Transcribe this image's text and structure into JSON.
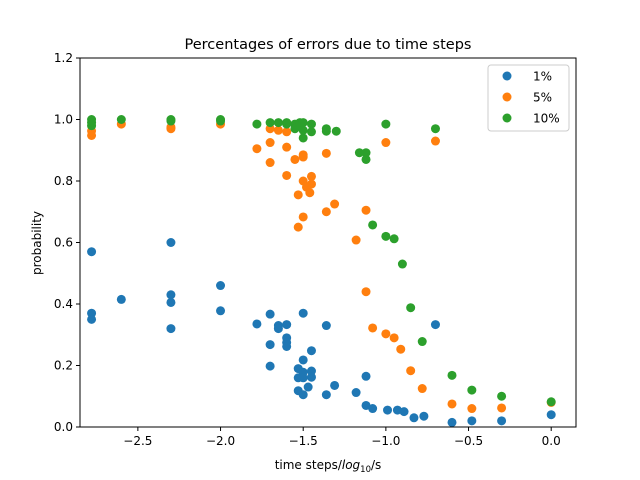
{
  "chart_data": {
    "type": "scatter",
    "title": "Percentages of errors due to time steps",
    "xlabel_main": "time steps/",
    "xlabel_log": "log",
    "xlabel_sub": "10",
    "xlabel_unit": "/s",
    "ylabel": "probability",
    "xlim": [
      -2.85,
      0.15
    ],
    "ylim": [
      0.0,
      1.2
    ],
    "xticks": [
      -2.5,
      -2.0,
      -1.5,
      -1.0,
      -0.5,
      0.0
    ],
    "xtick_labels": [
      "−2.5",
      "−2.0",
      "−1.5",
      "−1.0",
      "−0.5",
      "0.0"
    ],
    "yticks": [
      0.0,
      0.2,
      0.4,
      0.6,
      0.8,
      1.0,
      1.2
    ],
    "ytick_labels": [
      "0.0",
      "0.2",
      "0.4",
      "0.6",
      "0.8",
      "1.0",
      "1.2"
    ],
    "grid": false,
    "legend_position": "top-right",
    "series": [
      {
        "name": "1%",
        "color": "#1f77b4",
        "points": [
          [
            -2.78,
            0.57
          ],
          [
            -2.78,
            0.37
          ],
          [
            -2.78,
            0.35
          ],
          [
            -2.6,
            0.415
          ],
          [
            -2.3,
            0.6
          ],
          [
            -2.3,
            0.43
          ],
          [
            -2.3,
            0.405
          ],
          [
            -2.3,
            0.32
          ],
          [
            -2.0,
            0.46
          ],
          [
            -2.0,
            0.378
          ],
          [
            -1.78,
            0.335
          ],
          [
            -1.7,
            0.367
          ],
          [
            -1.7,
            0.268
          ],
          [
            -1.7,
            0.198
          ],
          [
            -1.65,
            0.33
          ],
          [
            -1.65,
            0.32
          ],
          [
            -1.6,
            0.333
          ],
          [
            -1.6,
            0.29
          ],
          [
            -1.6,
            0.275
          ],
          [
            -1.6,
            0.262
          ],
          [
            -1.53,
            0.19
          ],
          [
            -1.53,
            0.16
          ],
          [
            -1.53,
            0.118
          ],
          [
            -1.5,
            0.37
          ],
          [
            -1.5,
            0.218
          ],
          [
            -1.5,
            0.178
          ],
          [
            -1.5,
            0.16
          ],
          [
            -1.5,
            0.105
          ],
          [
            -1.47,
            0.13
          ],
          [
            -1.45,
            0.248
          ],
          [
            -1.45,
            0.182
          ],
          [
            -1.45,
            0.162
          ],
          [
            -1.36,
            0.33
          ],
          [
            -1.36,
            0.105
          ],
          [
            -1.31,
            0.135
          ],
          [
            -1.18,
            0.112
          ],
          [
            -1.12,
            0.165
          ],
          [
            -1.12,
            0.07
          ],
          [
            -1.08,
            0.06
          ],
          [
            -0.99,
            0.055
          ],
          [
            -0.93,
            0.055
          ],
          [
            -0.89,
            0.05
          ],
          [
            -0.83,
            0.03
          ],
          [
            -0.77,
            0.035
          ],
          [
            -0.7,
            0.333
          ],
          [
            -0.6,
            0.015
          ],
          [
            -0.48,
            0.02
          ],
          [
            -0.3,
            0.02
          ],
          [
            0.0,
            0.04
          ]
        ]
      },
      {
        "name": "5%",
        "color": "#ff7f0e",
        "points": [
          [
            -2.78,
            0.963
          ],
          [
            -2.78,
            0.948
          ],
          [
            -2.6,
            0.985
          ],
          [
            -2.3,
            0.975
          ],
          [
            -2.3,
            0.97
          ],
          [
            -2.0,
            0.985
          ],
          [
            -1.78,
            0.905
          ],
          [
            -1.7,
            0.97
          ],
          [
            -1.7,
            0.925
          ],
          [
            -1.7,
            0.86
          ],
          [
            -1.65,
            0.965
          ],
          [
            -1.6,
            0.96
          ],
          [
            -1.6,
            0.91
          ],
          [
            -1.6,
            0.818
          ],
          [
            -1.55,
            0.87
          ],
          [
            -1.53,
            0.755
          ],
          [
            -1.53,
            0.65
          ],
          [
            -1.5,
            0.885
          ],
          [
            -1.5,
            0.878
          ],
          [
            -1.5,
            0.8
          ],
          [
            -1.5,
            0.683
          ],
          [
            -1.48,
            0.78
          ],
          [
            -1.46,
            0.762
          ],
          [
            -1.45,
            0.815
          ],
          [
            -1.45,
            0.79
          ],
          [
            -1.36,
            0.89
          ],
          [
            -1.36,
            0.7
          ],
          [
            -1.31,
            0.725
          ],
          [
            -1.18,
            0.608
          ],
          [
            -1.12,
            0.705
          ],
          [
            -1.12,
            0.44
          ],
          [
            -1.08,
            0.322
          ],
          [
            -1.0,
            0.925
          ],
          [
            -1.0,
            0.303
          ],
          [
            -0.95,
            0.29
          ],
          [
            -0.91,
            0.253
          ],
          [
            -0.85,
            0.183
          ],
          [
            -0.78,
            0.125
          ],
          [
            -0.7,
            0.93
          ],
          [
            -0.6,
            0.075
          ],
          [
            -0.48,
            0.06
          ],
          [
            -0.3,
            0.062
          ],
          [
            0.0,
            0.08
          ]
        ]
      },
      {
        "name": "10%",
        "color": "#2ca02c",
        "points": [
          [
            -2.78,
            1.0
          ],
          [
            -2.78,
            0.99
          ],
          [
            -2.78,
            0.98
          ],
          [
            -2.6,
            1.0
          ],
          [
            -2.3,
            1.0
          ],
          [
            -2.3,
            0.995
          ],
          [
            -2.0,
            1.0
          ],
          [
            -2.0,
            0.995
          ],
          [
            -1.78,
            0.985
          ],
          [
            -1.7,
            0.99
          ],
          [
            -1.65,
            0.99
          ],
          [
            -1.6,
            0.99
          ],
          [
            -1.6,
            0.985
          ],
          [
            -1.55,
            0.985
          ],
          [
            -1.55,
            0.97
          ],
          [
            -1.52,
            0.99
          ],
          [
            -1.52,
            0.98
          ],
          [
            -1.5,
            0.99
          ],
          [
            -1.5,
            0.965
          ],
          [
            -1.5,
            0.94
          ],
          [
            -1.45,
            0.985
          ],
          [
            -1.45,
            0.96
          ],
          [
            -1.36,
            0.97
          ],
          [
            -1.36,
            0.962
          ],
          [
            -1.3,
            0.962
          ],
          [
            -1.16,
            0.892
          ],
          [
            -1.12,
            0.892
          ],
          [
            -1.12,
            0.87
          ],
          [
            -1.08,
            0.657
          ],
          [
            -1.0,
            0.985
          ],
          [
            -1.0,
            0.62
          ],
          [
            -0.95,
            0.612
          ],
          [
            -0.9,
            0.53
          ],
          [
            -0.85,
            0.388
          ],
          [
            -0.78,
            0.278
          ],
          [
            -0.7,
            0.97
          ],
          [
            -0.6,
            0.168
          ],
          [
            -0.48,
            0.12
          ],
          [
            -0.3,
            0.1
          ],
          [
            0.0,
            0.082
          ]
        ]
      }
    ]
  }
}
